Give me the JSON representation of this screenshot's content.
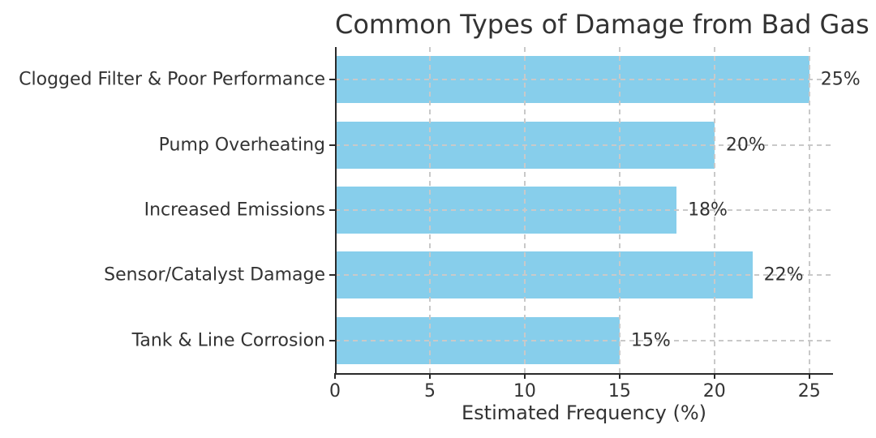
{
  "chart_data": {
    "type": "bar",
    "orientation": "horizontal",
    "title": "Common Types of Damage from Bad Gas",
    "categories": [
      "Clogged Filter & Poor Performance",
      "Pump Overheating",
      "Increased Emissions",
      "Sensor/Catalyst Damage",
      "Tank & Line Corrosion"
    ],
    "values": [
      25,
      20,
      18,
      22,
      15
    ],
    "value_labels": [
      "25%",
      "20%",
      "18%",
      "22%",
      "15%"
    ],
    "xlabel": "Estimated Frequency (%)",
    "x_ticks": [
      0,
      5,
      10,
      15,
      20,
      25
    ],
    "x_tick_labels": [
      "0",
      "5",
      "10",
      "15",
      "20",
      "25"
    ],
    "xlim": [
      0,
      26.25
    ],
    "grid": "dashed, both axes, drawn above bars",
    "legend": "none",
    "colors": {
      "bar": "#87CEEB",
      "grid": "#c9c9c9",
      "spine": "#2a2a2a",
      "tick": "#2a2a2a",
      "text": "#333333"
    },
    "layout": {
      "bar_height_fraction": 0.72,
      "value_label_offset_units": 0.6
    }
  }
}
